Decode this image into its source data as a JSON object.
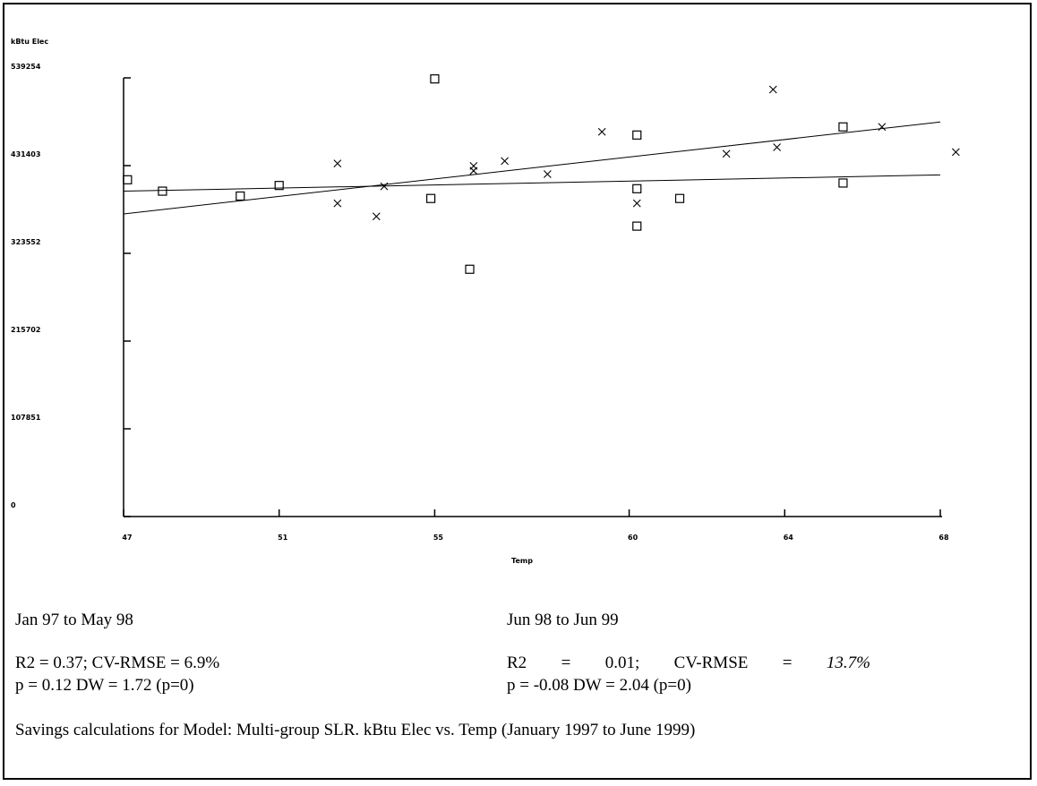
{
  "chart_data": {
    "type": "scatter",
    "ylabel": "kBtu Elec",
    "xlabel": "Temp",
    "xlim": [
      47,
      68
    ],
    "ylim": [
      0,
      539254
    ],
    "x_ticks": [
      "47",
      "51",
      "55",
      "60",
      "64",
      "68"
    ],
    "x_tick_values": [
      47,
      51,
      55,
      60,
      64,
      68
    ],
    "y_ticks": [
      "0",
      "107851",
      "215702",
      "323552",
      "431403",
      "539254"
    ],
    "y_tick_values": [
      0,
      107851,
      215702,
      323552,
      431403,
      539254
    ],
    "series": [
      {
        "marker": "square",
        "points": [
          [
            47.1,
            414000
          ],
          [
            48.0,
            400000
          ],
          [
            50.0,
            394000
          ],
          [
            51.0,
            407000
          ],
          [
            54.9,
            391000
          ],
          [
            55.0,
            538000
          ],
          [
            55.9,
            304000
          ],
          [
            60.2,
            403000
          ],
          [
            60.2,
            357000
          ],
          [
            60.2,
            469000
          ],
          [
            61.3,
            391000
          ],
          [
            65.5,
            410000
          ],
          [
            65.5,
            479000
          ]
        ],
        "fit_line": [
          [
            47,
            400000
          ],
          [
            68,
            420000
          ]
        ]
      },
      {
        "marker": "x",
        "points": [
          [
            52.5,
            385000
          ],
          [
            52.5,
            434000
          ],
          [
            53.7,
            406000
          ],
          [
            53.5,
            369000
          ],
          [
            56.0,
            431000
          ],
          [
            56.0,
            425000
          ],
          [
            56.8,
            437000
          ],
          [
            57.9,
            421000
          ],
          [
            59.3,
            473000
          ],
          [
            60.2,
            385000
          ],
          [
            62.5,
            446000
          ],
          [
            63.8,
            454000
          ],
          [
            63.7,
            525000
          ],
          [
            66.5,
            479000
          ],
          [
            68.4,
            448000
          ]
        ],
        "fit_line": [
          [
            47,
            372000
          ],
          [
            68,
            485000
          ]
        ]
      }
    ]
  },
  "captions": {
    "group1_title": "Jan 97 to May 98",
    "group2_title": "Jun 98 to Jun 99",
    "group1_stats_line1": "R2 = 0.37; CV-RMSE = 6.9%",
    "group1_stats_line2": "p = 0.12  DW = 1.72 (p=0)",
    "group2_stats_line1": [
      "R2",
      "=",
      "0.01;",
      "CV-RMSE",
      "=",
      "13.7%"
    ],
    "group2_stats_line2": "p = -0.08  DW = 2.04 (p=0)",
    "summary": "Savings calculations for  Model: Multi-group SLR. kBtu Elec vs. Temp (January 1997 to June 1999)"
  }
}
